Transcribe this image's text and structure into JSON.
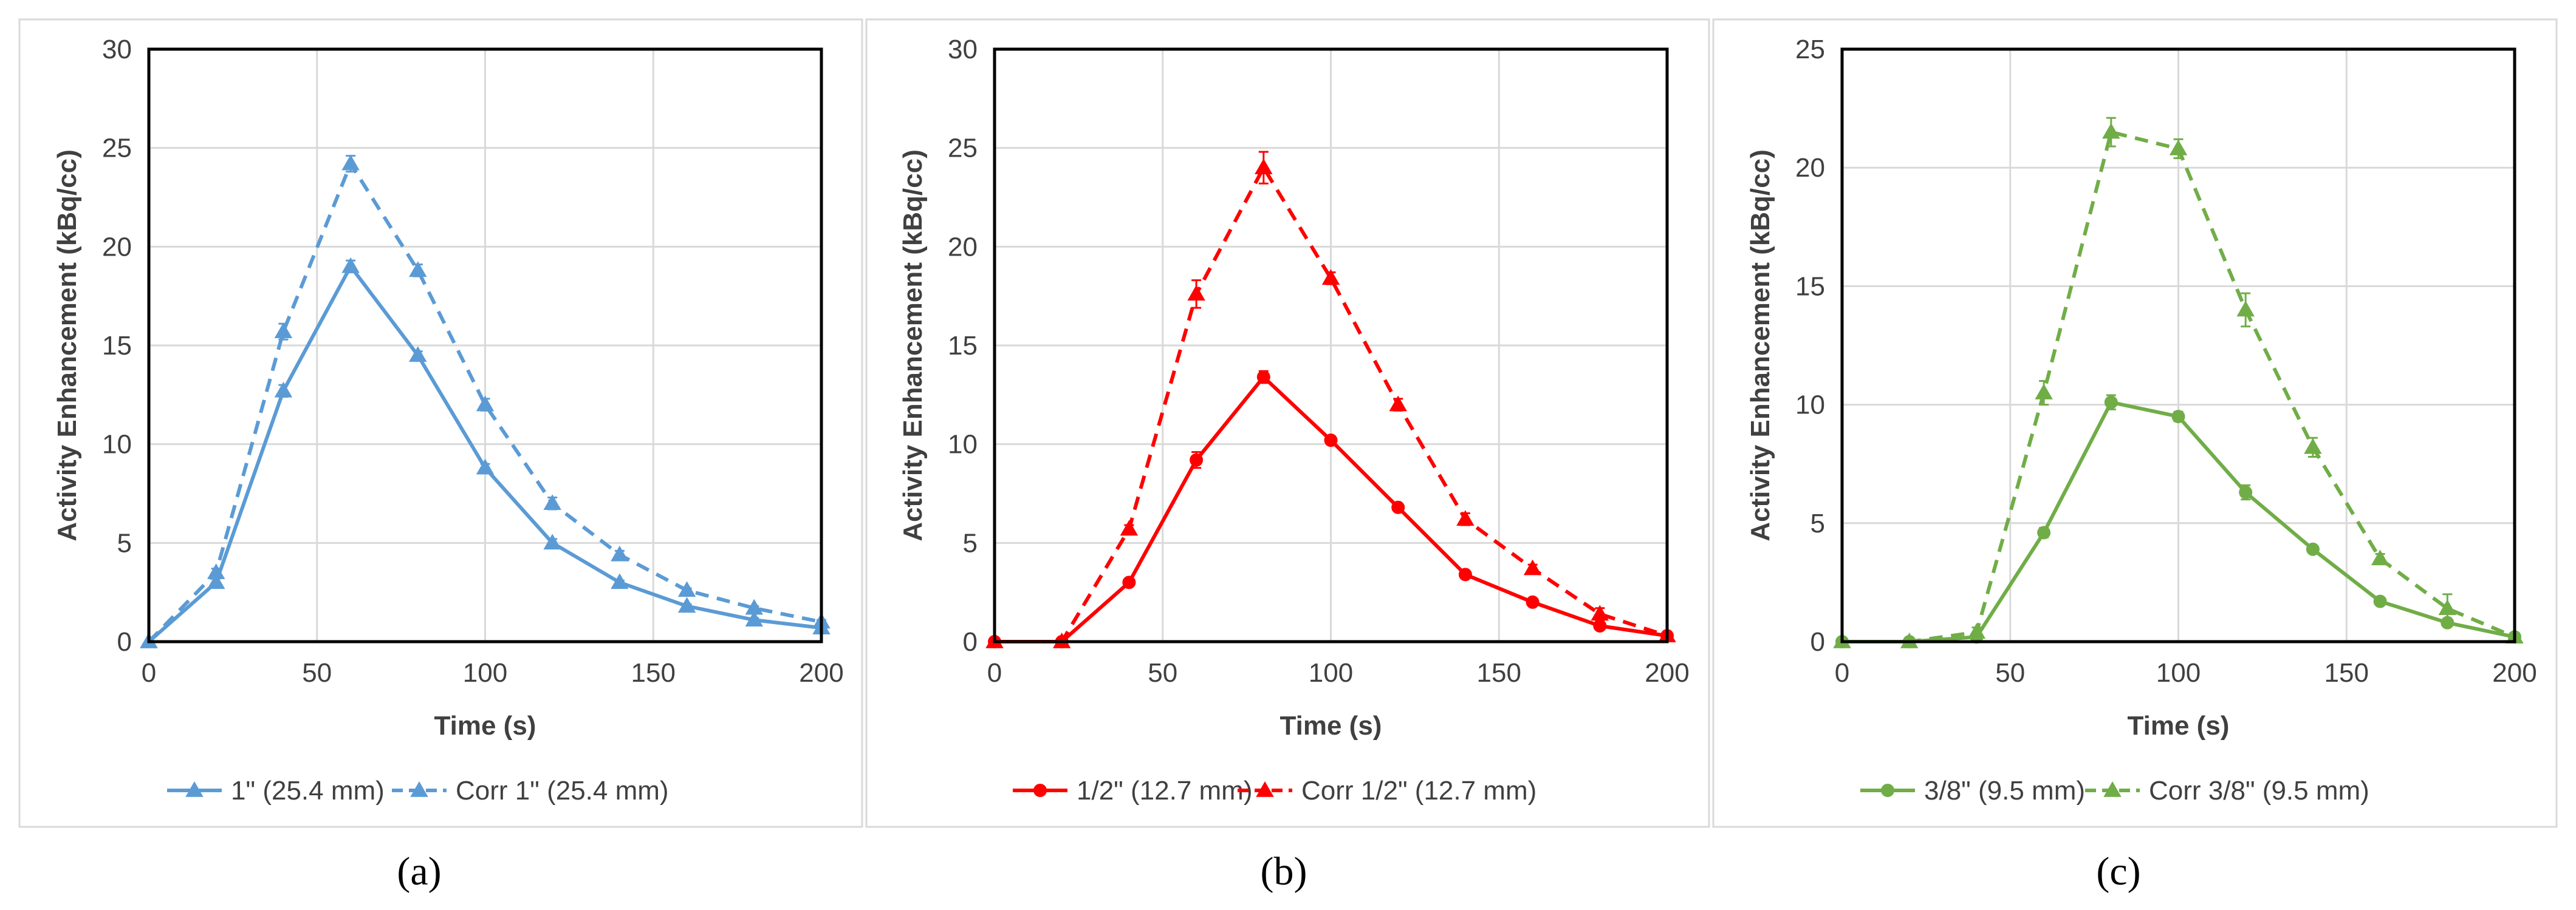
{
  "chart_data": [
    {
      "type": "line",
      "panel_label": "(a)",
      "xlabel": "Time (s)",
      "ylabel": "Activity Enhancement (kBq/cc)",
      "xlim": [
        0,
        200
      ],
      "ylim": [
        0,
        30
      ],
      "x_ticks": [
        "0",
        "50",
        "100",
        "150",
        "200"
      ],
      "y_ticks": [
        "0",
        "5",
        "10",
        "15",
        "20",
        "25",
        "30"
      ],
      "grid": true,
      "legend_position": "bottom",
      "series": [
        {
          "name": "1\" (25.4 mm)",
          "color": "#5b9bd5",
          "dashed": false,
          "marker": "triangle",
          "x": [
            0,
            20,
            40,
            60,
            80,
            100,
            120,
            140,
            160,
            180,
            200
          ],
          "values": [
            0,
            3.0,
            12.7,
            19.0,
            14.5,
            8.8,
            5.0,
            3.0,
            1.8,
            1.1,
            0.7
          ],
          "errors": [
            0,
            0.2,
            0.3,
            0.3,
            0.2,
            0.2,
            0.2,
            0.1,
            0.1,
            0.1,
            0.1
          ]
        },
        {
          "name": "Corr 1\" (25.4 mm)",
          "color": "#5b9bd5",
          "dashed": true,
          "marker": "triangle",
          "x": [
            0,
            20,
            40,
            60,
            80,
            100,
            120,
            140,
            160,
            180,
            200
          ],
          "values": [
            0,
            3.5,
            15.7,
            24.2,
            18.8,
            12.0,
            7.0,
            4.4,
            2.6,
            1.7,
            1.0
          ],
          "errors": [
            0,
            0.2,
            0.4,
            0.4,
            0.3,
            0.3,
            0.3,
            0.2,
            0.1,
            0.1,
            0.1
          ]
        }
      ]
    },
    {
      "type": "line",
      "panel_label": "(b)",
      "xlabel": "Time (s)",
      "ylabel": "Activity Enhancement (kBq/cc)",
      "xlim": [
        0,
        200
      ],
      "ylim": [
        0,
        30
      ],
      "x_ticks": [
        "0",
        "50",
        "100",
        "150",
        "200"
      ],
      "y_ticks": [
        "0",
        "5",
        "10",
        "15",
        "20",
        "25",
        "30"
      ],
      "grid": true,
      "legend_position": "bottom",
      "series": [
        {
          "name": "1/2\" (12.7 mm)",
          "color": "#ff0000",
          "dashed": false,
          "marker": "circle",
          "x": [
            0,
            20,
            40,
            60,
            80,
            100,
            120,
            140,
            160,
            180,
            200
          ],
          "values": [
            0,
            0,
            3.0,
            9.2,
            13.4,
            10.2,
            6.8,
            3.4,
            2.0,
            0.8,
            0.3
          ],
          "errors": [
            0,
            0,
            0.1,
            0.4,
            0.3,
            0.2,
            0.1,
            0.1,
            0.1,
            0.1,
            0.05
          ]
        },
        {
          "name": "Corr 1/2\" (12.7 mm)",
          "color": "#ff0000",
          "dashed": true,
          "marker": "triangle",
          "x": [
            0,
            20,
            40,
            60,
            80,
            100,
            120,
            140,
            160,
            180,
            200
          ],
          "values": [
            0,
            0,
            5.7,
            17.6,
            24.0,
            18.4,
            12.0,
            6.2,
            3.7,
            1.4,
            0.3
          ],
          "errors": [
            0,
            0,
            0.2,
            0.7,
            0.8,
            0.3,
            0.3,
            0.3,
            0.2,
            0.3,
            0.05
          ]
        }
      ]
    },
    {
      "type": "line",
      "panel_label": "(c)",
      "xlabel": "Time (s)",
      "ylabel": "Activity Enhancement (kBq/cc)",
      "xlim": [
        0,
        200
      ],
      "ylim": [
        0,
        25
      ],
      "x_ticks": [
        "0",
        "50",
        "100",
        "150",
        "200"
      ],
      "y_ticks": [
        "0",
        "5",
        "10",
        "15",
        "20",
        "25"
      ],
      "grid": true,
      "legend_position": "bottom",
      "series": [
        {
          "name": "3/8\" (9.5 mm)",
          "color": "#70ad47",
          "dashed": false,
          "marker": "circle",
          "x": [
            0,
            20,
            40,
            60,
            80,
            100,
            120,
            140,
            160,
            180,
            200
          ],
          "values": [
            0,
            0,
            0.2,
            4.6,
            10.1,
            9.5,
            6.3,
            3.9,
            1.7,
            0.8,
            0.2
          ],
          "errors": [
            0,
            0,
            0.05,
            0.2,
            0.3,
            0.2,
            0.3,
            0.1,
            0.1,
            0.1,
            0.05
          ]
        },
        {
          "name": "Corr 3/8\" (9.5 mm)",
          "color": "#70ad47",
          "dashed": true,
          "marker": "triangle",
          "x": [
            0,
            20,
            40,
            60,
            80,
            100,
            120,
            140,
            160,
            180,
            200
          ],
          "values": [
            0,
            0,
            0.4,
            10.5,
            21.5,
            20.8,
            14.0,
            8.2,
            3.5,
            1.4,
            0.2
          ],
          "errors": [
            0,
            0,
            0.2,
            0.5,
            0.6,
            0.4,
            0.7,
            0.4,
            0.2,
            0.6,
            0.05
          ]
        }
      ]
    }
  ]
}
